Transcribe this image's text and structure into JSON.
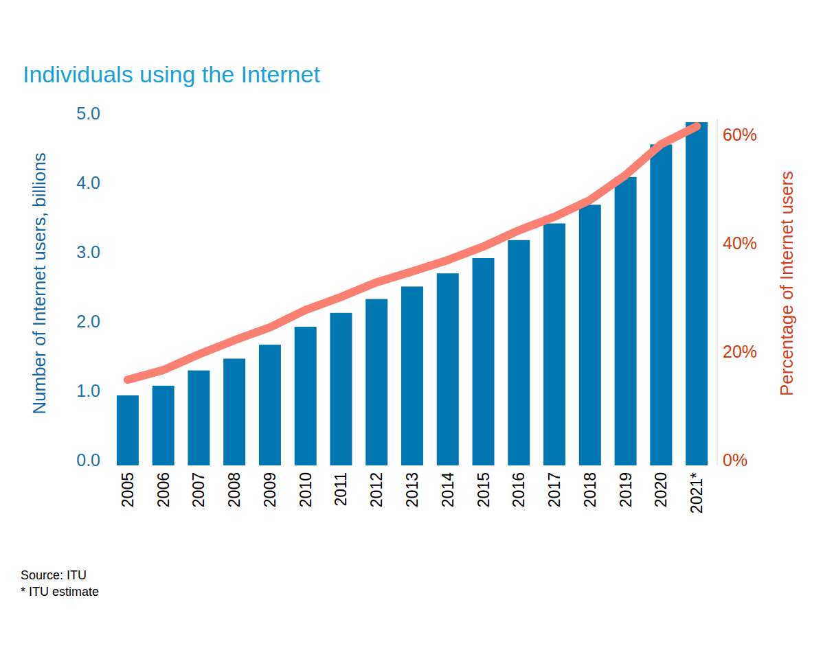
{
  "chart_data": {
    "type": "bar",
    "title": "Individuals using the Internet",
    "y_label": "Number of Internet users, billions",
    "y2_label": "Percentage of Internet users",
    "notes": [
      "Source: ITU",
      "* ITU estimate"
    ],
    "categories": [
      "2005",
      "2006",
      "2007",
      "2008",
      "2009",
      "2010",
      "2011",
      "2012",
      "2013",
      "2014",
      "2015",
      "2016",
      "2017",
      "2018",
      "2019",
      "2020",
      "2021*"
    ],
    "series": [
      {
        "type": "bar",
        "color": "#0077b0",
        "values": [
          1.01,
          1.15,
          1.37,
          1.54,
          1.74,
          2.0,
          2.2,
          2.4,
          2.58,
          2.77,
          2.99,
          3.25,
          3.49,
          3.76,
          4.16,
          4.63,
          4.95
        ]
      },
      {
        "type": "line",
        "axis": "y2",
        "color": "#fa8072",
        "values": [
          15.8,
          17.6,
          20.5,
          23.1,
          25.5,
          28.7,
          31.1,
          33.8,
          35.8,
          37.9,
          40.4,
          43.4,
          45.9,
          49.0,
          53.6,
          59.3,
          62.6
        ]
      }
    ],
    "ylim": [
      0,
      5
    ],
    "yticks": [
      {
        "value": 0,
        "label": "0.0"
      },
      {
        "value": 1,
        "label": "1.0"
      },
      {
        "value": 2,
        "label": "2.0"
      },
      {
        "value": 3,
        "label": "3.0"
      },
      {
        "value": 4,
        "label": "4.0"
      },
      {
        "value": 5,
        "label": "5.0"
      }
    ],
    "y2lim": [
      0,
      64
    ],
    "y2ticks": [
      {
        "value": 0,
        "label": "0%"
      },
      {
        "value": 20,
        "label": "20%"
      },
      {
        "value": 40,
        "label": "40%"
      },
      {
        "value": 60,
        "label": "60%"
      }
    ],
    "grid": false
  }
}
